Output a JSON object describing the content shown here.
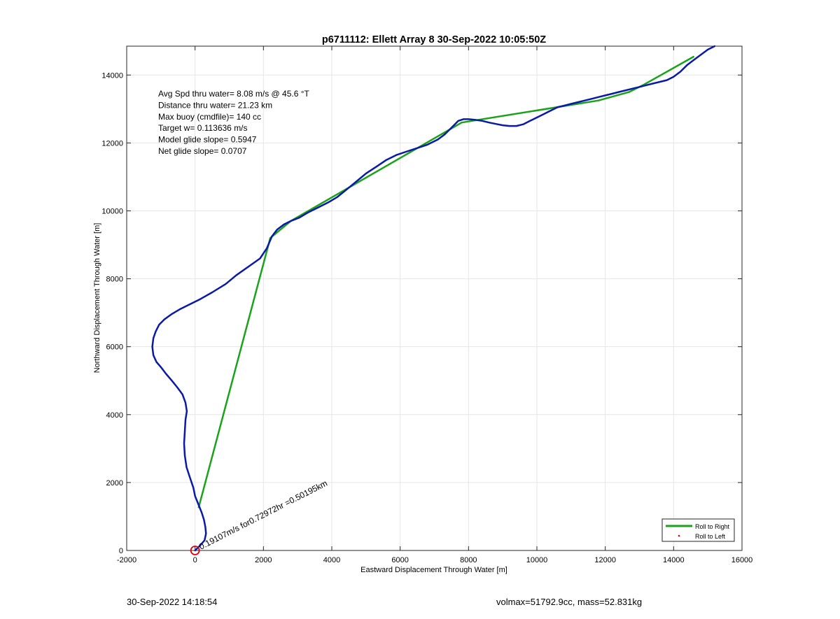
{
  "chart_data": {
    "type": "line",
    "title": "p6711112: Ellett Array 8 30-Sep-2022 10:05:50Z",
    "xlabel": "Eastward Displacement Through Water [m]",
    "ylabel": "Northward Displacement Through Water [m]",
    "xlim": [
      -2000,
      16000
    ],
    "ylim": [
      0,
      14850
    ],
    "xticks": [
      -2000,
      0,
      2000,
      4000,
      6000,
      8000,
      10000,
      12000,
      14000,
      16000
    ],
    "yticks": [
      0,
      2000,
      4000,
      6000,
      8000,
      10000,
      12000,
      14000
    ],
    "grid": true,
    "legend_position": "bottom-right",
    "series": [
      {
        "name": "Roll to Right",
        "color": "#1aa31a",
        "x": [
          100,
          2200,
          2800,
          7800,
          11800,
          12700,
          13100,
          14600
        ],
        "y": [
          1250,
          9200,
          9700,
          12600,
          13250,
          13500,
          13700,
          14550
        ]
      },
      {
        "name": "Roll to Left",
        "color": "#e0000a",
        "x": [],
        "y": []
      },
      {
        "name": "",
        "color": "#0a1aa8",
        "x": [
          0,
          150,
          280,
          320,
          300,
          260,
          200,
          100,
          0,
          -50,
          -150,
          -250,
          -300,
          -320,
          -300,
          -280,
          -240,
          -280,
          -370,
          -520,
          -680,
          -850,
          -1000,
          -1130,
          -1220,
          -1250,
          -1220,
          -1150,
          -1050,
          -900,
          -700,
          -450,
          -150,
          150,
          500,
          900,
          1200,
          1550,
          1900,
          2100,
          2250,
          2400,
          2600,
          2800,
          3050,
          3300,
          3600,
          3900,
          4150,
          4400,
          4700,
          5000,
          5300,
          5600,
          5900,
          6200,
          6500,
          6800,
          7100,
          7300,
          7450,
          7600,
          7700,
          7850,
          8000,
          8200,
          8400,
          8600,
          8800,
          9000,
          9200,
          9400,
          9600,
          9800,
          10000,
          10200,
          10400,
          10600,
          10800,
          11000,
          11200,
          11400,
          11600,
          11800,
          12000,
          12200,
          12400,
          12600,
          12800,
          13000,
          13200,
          13400,
          13600,
          13800,
          14000,
          14200,
          14400,
          14600,
          14800,
          15000,
          15200
        ],
        "y": [
          0,
          150,
          300,
          500,
          700,
          900,
          1100,
          1350,
          1600,
          1850,
          2150,
          2450,
          2800,
          3150,
          3500,
          3850,
          4100,
          4350,
          4600,
          4800,
          5000,
          5200,
          5400,
          5550,
          5750,
          6000,
          6250,
          6450,
          6650,
          6800,
          6950,
          7100,
          7250,
          7400,
          7600,
          7850,
          8100,
          8350,
          8600,
          8900,
          9250,
          9450,
          9600,
          9700,
          9800,
          9950,
          10100,
          10250,
          10400,
          10600,
          10850,
          11100,
          11300,
          11500,
          11650,
          11750,
          11850,
          11950,
          12100,
          12250,
          12400,
          12550,
          12650,
          12700,
          12700,
          12680,
          12650,
          12600,
          12560,
          12520,
          12500,
          12500,
          12550,
          12650,
          12750,
          12850,
          12950,
          13050,
          13100,
          13150,
          13200,
          13250,
          13300,
          13350,
          13400,
          13450,
          13500,
          13550,
          13600,
          13650,
          13700,
          13750,
          13800,
          13850,
          13950,
          14100,
          14300,
          14450,
          14600,
          14750,
          14850
        ]
      }
    ],
    "annotations": [
      "Avg Spd thru water=  8.08 m/s @  45.6 °T",
      "Distance thru water= 21.23 km",
      "Max buoy (cmdfile)= 140 cc",
      "Target w= 0.113636 m/s",
      "Model glide slope= 0.5947",
      "Net glide slope= 0.0707"
    ],
    "rotated_label": "0.19107m/s for0.72972hr =0.50195km",
    "start_marker": {
      "x": 0,
      "y": 0
    }
  },
  "footer": {
    "timestamp": "30-Sep-2022 14:18:54",
    "stats": "volmax=51792.9cc, mass=52.831kg"
  }
}
